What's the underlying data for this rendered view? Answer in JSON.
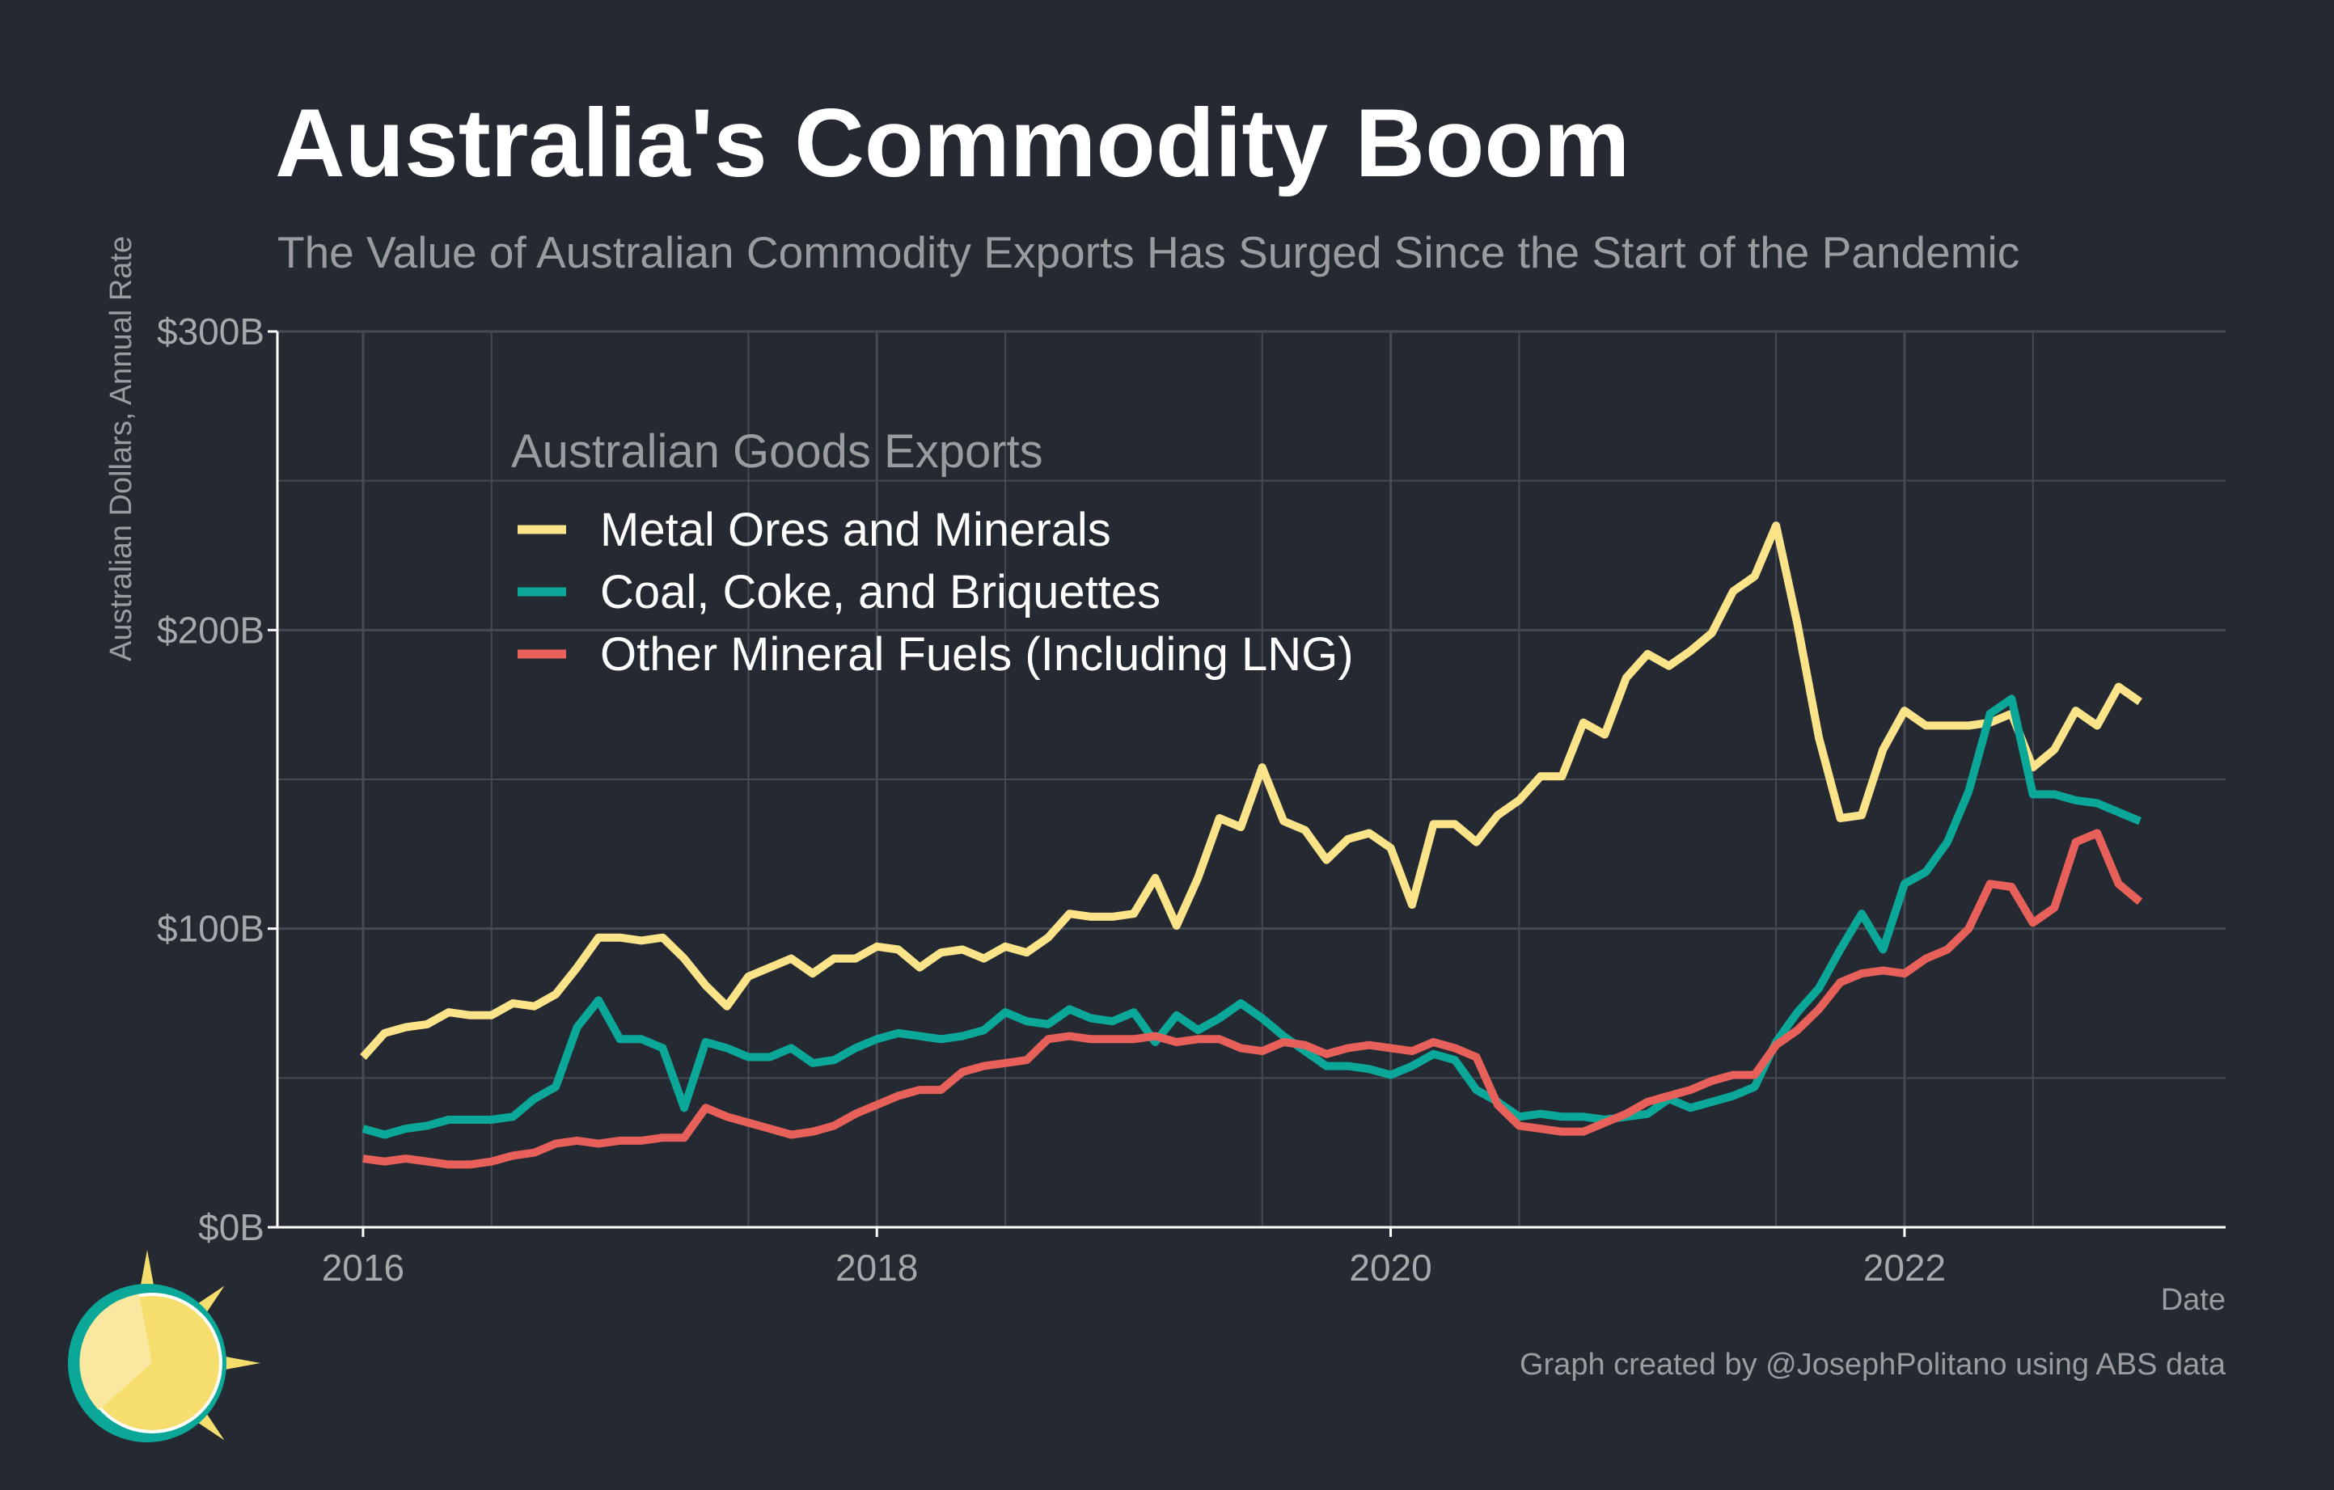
{
  "title": "Australia's Commodity Boom",
  "subtitle": "The Value of Australian Commodity Exports Has Surged Since the Start of the Pandemic",
  "caption": "Graph created by @JosephPolitano using ABS data",
  "colors": {
    "background": "#252a32",
    "grid": "#464a52",
    "axis": "#ffffff",
    "metal": "#fbe38a",
    "coal": "#0ba899",
    "fuels": "#e8605a"
  },
  "icon": "sun-logo-icon",
  "chart_data": {
    "type": "line",
    "ylabel": "Australian Dollars, Annual Rate",
    "xlabel": "Date",
    "ylim": [
      0,
      300
    ],
    "yticks": [
      0,
      100,
      200,
      300
    ],
    "ytick_labels": [
      "$0B",
      "$100B",
      "$200B",
      "$300B"
    ],
    "xlim": [
      "2015-09",
      "2023-04"
    ],
    "xticks": [
      "2016-01",
      "2018-01",
      "2020-01",
      "2022-01"
    ],
    "xtick_labels": [
      "2016",
      "2018",
      "2020",
      "2022"
    ],
    "grid": true,
    "legend": {
      "title": "Australian Goods Exports",
      "position": "top-left"
    },
    "start": "2016-01",
    "frequency": "monthly",
    "series": [
      {
        "name": "Metal Ores and Minerals",
        "color": "#fbe38a",
        "values": [
          57,
          65,
          67,
          68,
          72,
          71,
          71,
          75,
          74,
          78,
          87,
          97,
          97,
          96,
          97,
          90,
          81,
          74,
          84,
          87,
          90,
          85,
          90,
          90,
          94,
          93,
          87,
          92,
          93,
          90,
          94,
          92,
          97,
          105,
          104,
          104,
          105,
          117,
          101,
          117,
          137,
          134,
          154,
          136,
          133,
          123,
          130,
          132,
          127,
          108,
          135,
          135,
          129,
          138,
          143,
          151,
          151,
          169,
          165,
          184,
          192,
          188,
          193,
          199,
          213,
          218,
          235,
          202,
          164,
          137,
          138,
          160,
          173,
          168,
          168,
          168,
          169,
          172,
          154,
          160,
          173,
          168,
          181,
          176
        ]
      },
      {
        "name": "Coal, Coke, and Briquettes",
        "color": "#0ba899",
        "values": [
          33,
          31,
          33,
          34,
          36,
          36,
          36,
          37,
          43,
          47,
          67,
          76,
          63,
          63,
          60,
          40,
          62,
          60,
          57,
          57,
          60,
          55,
          56,
          60,
          63,
          65,
          64,
          63,
          64,
          66,
          72,
          69,
          68,
          73,
          70,
          69,
          72,
          62,
          71,
          66,
          70,
          75,
          70,
          64,
          59,
          54,
          54,
          53,
          51,
          54,
          58,
          56,
          46,
          42,
          37,
          38,
          37,
          37,
          36,
          37,
          38,
          43,
          40,
          42,
          44,
          47,
          62,
          72,
          80,
          93,
          105,
          93,
          115,
          119,
          129,
          146,
          172,
          177,
          145,
          145,
          143,
          142,
          139,
          136
        ]
      },
      {
        "name": "Other Mineral Fuels (Including LNG)",
        "color": "#e8605a",
        "values": [
          23,
          22,
          23,
          22,
          21,
          21,
          22,
          24,
          25,
          28,
          29,
          28,
          29,
          29,
          30,
          30,
          40,
          37,
          35,
          33,
          31,
          32,
          34,
          38,
          41,
          44,
          46,
          46,
          52,
          54,
          55,
          56,
          63,
          64,
          63,
          63,
          63,
          64,
          62,
          63,
          63,
          60,
          59,
          62,
          61,
          58,
          60,
          61,
          60,
          59,
          62,
          60,
          57,
          41,
          34,
          33,
          32,
          32,
          35,
          38,
          42,
          44,
          46,
          49,
          51,
          51,
          61,
          66,
          73,
          82,
          85,
          86,
          85,
          90,
          93,
          100,
          115,
          114,
          102,
          107,
          129,
          132,
          115,
          109
        ]
      }
    ]
  }
}
